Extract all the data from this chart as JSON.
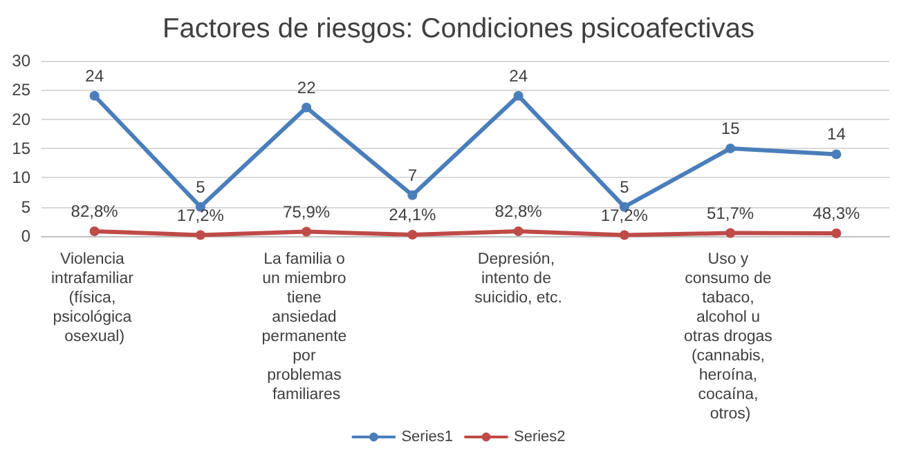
{
  "chart_data": {
    "type": "line",
    "title": "Factores de riesgos: Condiciones psicoafectivas",
    "categories": [
      "Violencia intrafamiliar (física, psicológica osexual)",
      null,
      "La familia o un miembro tiene ansiedad permanente por problemas familiares",
      null,
      "Depresión, intento de suicidio, etc.",
      null,
      "Uso y consumo de tabaco, alcohol u otras drogas (cannabis, heroína, cocaína, otros)",
      null
    ],
    "series": [
      {
        "name": "Series1",
        "color": "#4a7ebb",
        "values": [
          24,
          5,
          22,
          7,
          24,
          5,
          15,
          14
        ],
        "value_labels": [
          "24",
          "5",
          "22",
          "7",
          "24",
          "5",
          "15",
          "14"
        ]
      },
      {
        "name": "Series2",
        "color": "#be4b48",
        "values": [
          0.828,
          0.172,
          0.759,
          0.241,
          0.828,
          0.172,
          0.517,
          0.483
        ],
        "value_labels": [
          "82,8%",
          "17,2%",
          "75,9%",
          "24,1%",
          "82,8%",
          "17,2%",
          "51,7%",
          "48,3%"
        ]
      }
    ],
    "ylim": [
      0,
      30
    ],
    "yticks": [
      0,
      5,
      10,
      15,
      20,
      25,
      30
    ],
    "grid": "y",
    "legend": "bottom",
    "marker": "circle",
    "line_style": "solid"
  }
}
